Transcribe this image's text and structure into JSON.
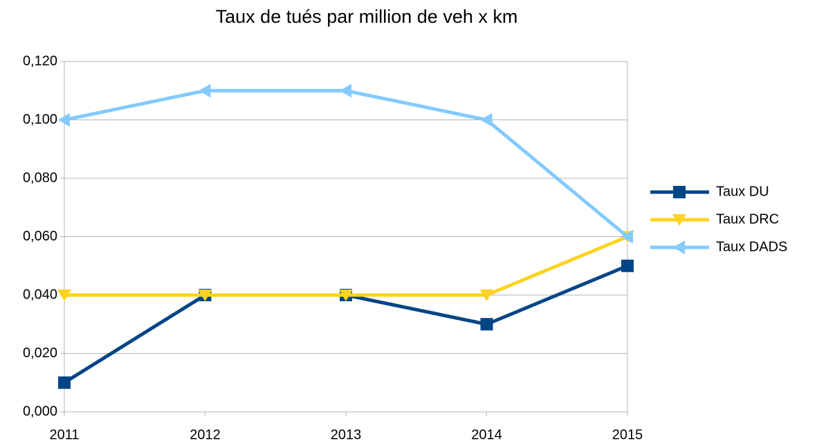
{
  "chart_data": {
    "type": "line",
    "title": "Taux de tués par million de veh x km",
    "categories": [
      "2011",
      "2012",
      "2013",
      "2014",
      "2015"
    ],
    "series": [
      {
        "name": "Taux DU",
        "color": "#004586",
        "marker": "square",
        "values": [
          0.01,
          0.04,
          0.04,
          0.03,
          0.05
        ]
      },
      {
        "name": "Taux DRC",
        "color": "#ffd320",
        "marker": "triangle-down",
        "values": [
          0.04,
          0.04,
          0.04,
          0.04,
          0.06
        ]
      },
      {
        "name": "Taux DADS",
        "color": "#83caff",
        "marker": "triangle-left",
        "values": [
          0.1,
          0.11,
          0.11,
          0.1,
          0.06
        ]
      }
    ],
    "ylim": [
      0,
      0.12
    ],
    "yticks": [
      {
        "value": 0,
        "label": "0,000"
      },
      {
        "value": 0.02,
        "label": "0,020"
      },
      {
        "value": 0.04,
        "label": "0,040"
      },
      {
        "value": 0.06,
        "label": "0,060"
      },
      {
        "value": 0.08,
        "label": "0,080"
      },
      {
        "value": 0.1,
        "label": "0,100"
      },
      {
        "value": 0.12,
        "label": "0,120"
      }
    ],
    "grid": true,
    "legend": "right"
  }
}
